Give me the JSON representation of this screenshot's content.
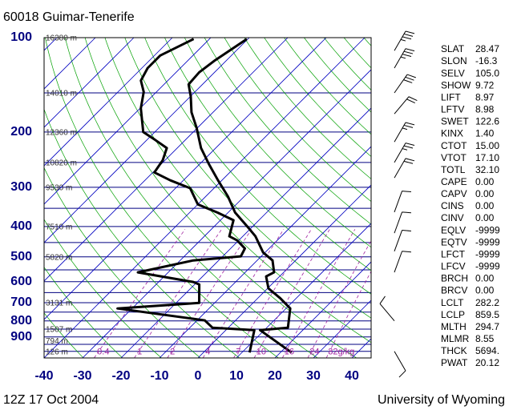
{
  "chart_data": {
    "type": "skewt",
    "title": "60018  Guimar-Tenerife",
    "footer_left": "12Z 17 Oct 2004",
    "footer_right": "University of Wyoming",
    "xlim": [
      -40,
      45
    ],
    "xticks": [
      -40,
      -30,
      -20,
      -10,
      0,
      10,
      20,
      30,
      40
    ],
    "ylim": [
      1050,
      100
    ],
    "yticks": [
      100,
      200,
      300,
      400,
      500,
      600,
      700,
      800,
      900
    ],
    "log_y": true,
    "heights": [
      {
        "pressure": 100,
        "label": "16380 m"
      },
      {
        "pressure": 150,
        "label": "14010 m"
      },
      {
        "pressure": 200,
        "label": "12360 m"
      },
      {
        "pressure": 250,
        "label": "10820 m"
      },
      {
        "pressure": 300,
        "label": "9530 m"
      },
      {
        "pressure": 400,
        "label": "7510 m"
      },
      {
        "pressure": 500,
        "label": "5820 m"
      },
      {
        "pressure": 700,
        "label": "3131 m"
      },
      {
        "pressure": 850,
        "label": "1507 m"
      },
      {
        "pressure": 925,
        "label": "794 m"
      },
      {
        "pressure": 1000,
        "label": "126 m"
      }
    ],
    "mixing_ratios": [
      0.4,
      1,
      2,
      4,
      7,
      10,
      16,
      24,
      {
        "value": 32,
        "label": "32g/kg"
      }
    ],
    "series": [
      {
        "color": "#000000",
        "pressure": [
          1009,
          856,
          841,
          730,
          677,
          630,
          577,
          560,
          513,
          484,
          430,
          406,
          361,
          321,
          285,
          253,
          225,
          194,
          173,
          154,
          141,
          129,
          118,
          101
        ],
        "values": [
          22.9,
          8.9,
          15.5,
          11.1,
          5.8,
          0.2,
          -3.5,
          -2.5,
          -6.0,
          -10.5,
          -16.7,
          -20.4,
          -28.2,
          -34.2,
          -41.0,
          -47.6,
          -53.8,
          -60.2,
          -65.6,
          -69.9,
          -73.6,
          -74.0,
          -73.0,
          -70.3
        ]
      },
      {
        "color": "#000000",
        "pressure": [
          1009,
          856,
          841,
          797,
          730,
          701,
          612,
          601,
          560,
          513,
          498,
          470,
          443,
          430,
          382,
          361,
          340,
          302,
          285,
          269,
          246,
          225,
          212,
          200,
          168,
          149,
          137,
          125,
          114,
          101
        ],
        "values": [
          12.0,
          7.4,
          -4.1,
          -8.0,
          -33.8,
          -14.0,
          -18.8,
          -21.0,
          -37.9,
          -26.6,
          -15.3,
          -16.3,
          -20.4,
          -23.5,
          -26.6,
          -32.8,
          -40.0,
          -46.2,
          -53.4,
          -59.6,
          -60.6,
          -62.7,
          -67.8,
          -73.0,
          -79.8,
          -83.3,
          -87.0,
          -88.5,
          -88.5,
          -84.1
        ]
      }
    ],
    "winds": {
      "pressure": [
        110,
        125,
        150,
        175,
        215,
        250,
        280,
        360,
        420,
        480,
        560,
        800,
        1000
      ],
      "direction": [
        30,
        30,
        35,
        40,
        30,
        30,
        30,
        20,
        20,
        20,
        20,
        320,
        150
      ],
      "speed": [
        35,
        35,
        30,
        20,
        25,
        25,
        20,
        10,
        10,
        10,
        10,
        10,
        10
      ]
    },
    "indices": [
      {
        "name": "SLAT",
        "value": "28.47"
      },
      {
        "name": "SLON",
        "value": "-16.3"
      },
      {
        "name": "SELV",
        "value": "105.0"
      },
      {
        "name": "SHOW",
        "value": "9.72"
      },
      {
        "name": "LIFT",
        "value": "8.97"
      },
      {
        "name": "LFTV",
        "value": "8.98"
      },
      {
        "name": "SWET",
        "value": "122.6"
      },
      {
        "name": "KINX",
        "value": "1.40"
      },
      {
        "name": "CTOT",
        "value": "15.00"
      },
      {
        "name": "VTOT",
        "value": "17.10"
      },
      {
        "name": "TOTL",
        "value": "32.10"
      },
      {
        "name": "CAPE",
        "value": "0.00"
      },
      {
        "name": "CAPV",
        "value": "0.00"
      },
      {
        "name": "CINS",
        "value": "0.00"
      },
      {
        "name": "CINV",
        "value": "0.00"
      },
      {
        "name": "EQLV",
        "value": "-9999"
      },
      {
        "name": "EQTV",
        "value": "-9999"
      },
      {
        "name": "LFCT",
        "value": "-9999"
      },
      {
        "name": "LFCV",
        "value": "-9999"
      },
      {
        "name": "BRCH",
        "value": "0.00"
      },
      {
        "name": "BRCV",
        "value": "0.00"
      },
      {
        "name": "LCLT",
        "value": "282.2"
      },
      {
        "name": "LCLP",
        "value": "859.5"
      },
      {
        "name": "MLTH",
        "value": "294.7"
      },
      {
        "name": "MLMR",
        "value": "8.55"
      },
      {
        "name": "THCK",
        "value": "5694."
      },
      {
        "name": "PWAT",
        "value": "20.12"
      }
    ]
  }
}
